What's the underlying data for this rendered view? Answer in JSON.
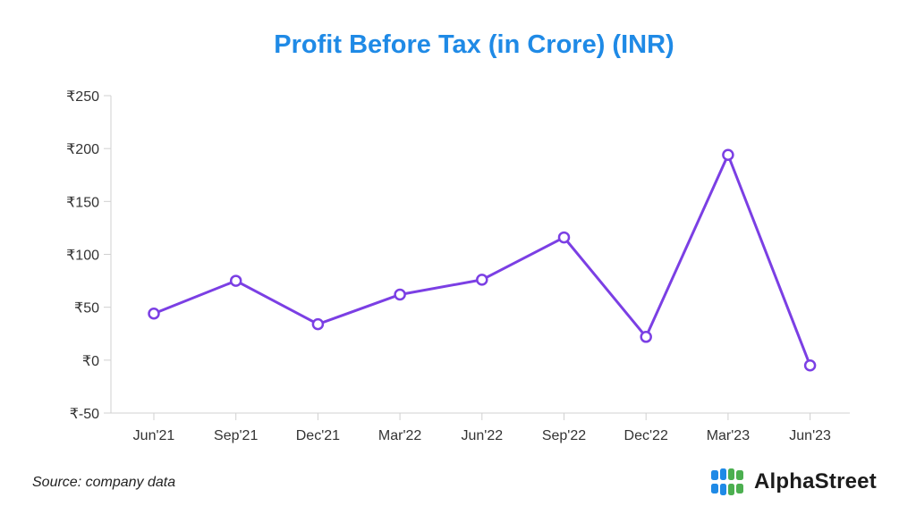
{
  "title": "Profit Before Tax (in Crore) (INR)",
  "source": "Source: company data",
  "brand": {
    "name": "AlphaStreet",
    "logo_icon": "alphastreet-logo-icon",
    "logo_colors": [
      "#1f8ae6",
      "#4caf50"
    ]
  },
  "colors": {
    "title": "#1f8ae6",
    "line": "#7b3fe4",
    "marker_fill": "#ffffff",
    "axis": "#d0d0d0",
    "tick_text": "#333333"
  },
  "chart_data": {
    "type": "line",
    "title": "Profit Before Tax (in Crore) (INR)",
    "xlabel": "",
    "ylabel": "",
    "categories": [
      "Jun'21",
      "Sep'21",
      "Dec'21",
      "Mar'22",
      "Jun'22",
      "Sep'22",
      "Dec'22",
      "Mar'23",
      "Jun'23"
    ],
    "values": [
      44,
      75,
      34,
      62,
      76,
      116,
      22,
      194,
      -5
    ],
    "ylim": [
      -50,
      250
    ],
    "yticks": [
      -50,
      0,
      50,
      100,
      150,
      200,
      250
    ],
    "ytick_labels": [
      "₹-50",
      "₹0",
      "₹50",
      "₹100",
      "₹150",
      "₹200",
      "₹250"
    ],
    "grid": false,
    "markers": "hollow-circle"
  }
}
